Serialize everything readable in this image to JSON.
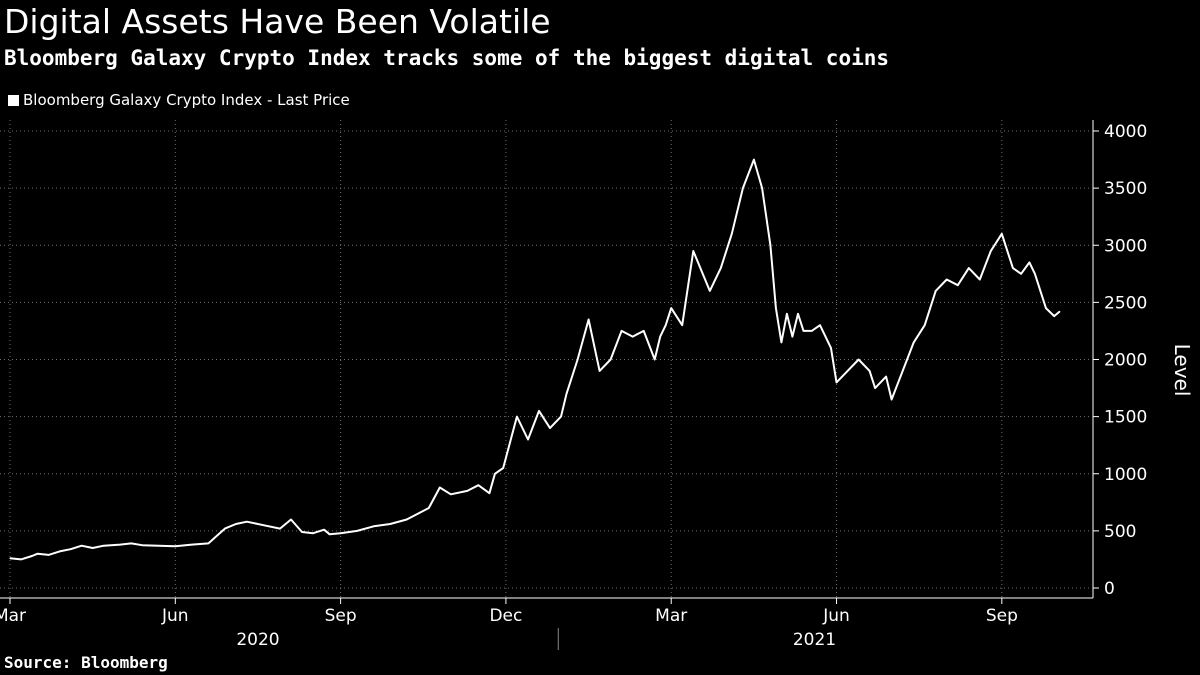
{
  "header": {
    "title": "Digital Assets Have Been Volatile",
    "subtitle": "Bloomberg Galaxy Crypto Index tracks some of the biggest digital coins"
  },
  "legend": {
    "label": "Bloomberg Galaxy Crypto Index - Last Price"
  },
  "footer": {
    "source": "Source: Bloomberg"
  },
  "colors": {
    "background": "#000000",
    "line": "#ffffff",
    "grid": "#6e6e6e"
  },
  "chart_data": {
    "type": "line",
    "title": "Digital Assets Have Been Volatile",
    "ylabel": "Level",
    "xlabel": "",
    "ylim": [
      0,
      4000
    ],
    "yticks": [
      0,
      500,
      1000,
      1500,
      2000,
      2500,
      3000,
      3500,
      4000
    ],
    "x_range_months": [
      0,
      19.6
    ],
    "x_ticks": [
      {
        "label": "Mar",
        "month": 0
      },
      {
        "label": "Jun",
        "month": 3
      },
      {
        "label": "Sep",
        "month": 6
      },
      {
        "label": "Dec",
        "month": 9
      },
      {
        "label": "Mar",
        "month": 12
      },
      {
        "label": "Jun",
        "month": 15
      },
      {
        "label": "Sep",
        "month": 18
      }
    ],
    "year_labels": [
      {
        "label": "2020",
        "month": 4.5
      },
      {
        "label": "2021",
        "month": 14.6
      }
    ],
    "year_divider_month": 9.95,
    "grid": true,
    "legend_position": "top-left",
    "series": [
      {
        "name": "Bloomberg Galaxy Crypto Index - Last Price",
        "x": [
          0,
          0.2,
          0.4,
          0.5,
          0.7,
          0.9,
          1.1,
          1.3,
          1.5,
          1.7,
          2.0,
          2.2,
          2.4,
          2.7,
          3.0,
          3.3,
          3.6,
          3.9,
          4.1,
          4.3,
          4.6,
          4.9,
          5.1,
          5.3,
          5.5,
          5.7,
          5.8,
          6.0,
          6.3,
          6.6,
          6.9,
          7.2,
          7.4,
          7.6,
          7.8,
          8.0,
          8.3,
          8.5,
          8.7,
          8.8,
          8.95,
          9.2,
          9.4,
          9.6,
          9.8,
          10.0,
          10.1,
          10.3,
          10.5,
          10.7,
          10.9,
          11.1,
          11.3,
          11.5,
          11.7,
          11.8,
          11.9,
          12.0,
          12.2,
          12.4,
          12.7,
          12.9,
          13.1,
          13.3,
          13.5,
          13.65,
          13.8,
          13.9,
          14.0,
          14.1,
          14.2,
          14.3,
          14.4,
          14.55,
          14.7,
          14.9,
          15.0,
          15.2,
          15.4,
          15.6,
          15.7,
          15.9,
          16.0,
          16.2,
          16.4,
          16.6,
          16.8,
          17.0,
          17.2,
          17.4,
          17.6,
          17.8,
          18.0,
          18.2,
          18.35,
          18.5,
          18.6,
          18.8,
          18.95,
          19.05
        ],
        "values": [
          260,
          250,
          280,
          300,
          290,
          320,
          340,
          370,
          350,
          370,
          380,
          390,
          375,
          370,
          365,
          380,
          390,
          520,
          560,
          580,
          550,
          520,
          600,
          490,
          480,
          510,
          470,
          480,
          500,
          540,
          560,
          600,
          650,
          700,
          880,
          820,
          850,
          900,
          830,
          1000,
          1050,
          1500,
          1300,
          1550,
          1400,
          1500,
          1700,
          2000,
          2350,
          1900,
          2000,
          2250,
          2200,
          2250,
          2000,
          2200,
          2300,
          2450,
          2300,
          2950,
          2600,
          2800,
          3100,
          3500,
          3750,
          3500,
          3000,
          2450,
          2150,
          2400,
          2200,
          2400,
          2250,
          2250,
          2300,
          2100,
          1800,
          1900,
          2000,
          1900,
          1750,
          1850,
          1650,
          1900,
          2150,
          2300,
          2600,
          2700,
          2650,
          2800,
          2700,
          2950,
          3100,
          2800,
          2750,
          2850,
          2750,
          2450,
          2380,
          2420
        ]
      }
    ]
  }
}
